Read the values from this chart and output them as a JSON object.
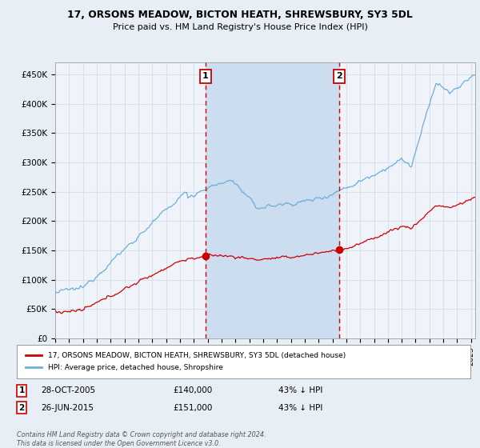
{
  "title": "17, ORSONS MEADOW, BICTON HEATH, SHREWSBURY, SY3 5DL",
  "subtitle": "Price paid vs. HM Land Registry's House Price Index (HPI)",
  "background_color": "#e8eef5",
  "plot_bg_color": "#f0f4fa",
  "grid_color": "#d8e0ea",
  "sale1_date": "28-OCT-2005",
  "sale1_price": 140000,
  "sale1_label": "43% ↓ HPI",
  "sale2_date": "26-JUN-2015",
  "sale2_price": 151000,
  "sale2_label": "43% ↓ HPI",
  "sale1_x": 2005.83,
  "sale2_x": 2015.49,
  "legend_line1": "17, ORSONS MEADOW, BICTON HEATH, SHREWSBURY, SY3 5DL (detached house)",
  "legend_line2": "HPI: Average price, detached house, Shropshire",
  "footer": "Contains HM Land Registry data © Crown copyright and database right 2024.\nThis data is licensed under the Open Government Licence v3.0.",
  "yticks": [
    0,
    50000,
    100000,
    150000,
    200000,
    250000,
    300000,
    350000,
    400000,
    450000
  ],
  "ytick_labels": [
    "£0",
    "£50K",
    "£100K",
    "£150K",
    "£200K",
    "£250K",
    "£300K",
    "£350K",
    "£400K",
    "£450K"
  ],
  "xlim_start": 1995.0,
  "xlim_end": 2025.3,
  "ylim_min": 0,
  "ylim_max": 470000,
  "hpi_color": "#6baed6",
  "sale_color": "#cc0000",
  "shade_color": "#ccddf0",
  "vline_color": "#dd0000",
  "box_edge_color": "#cc0000",
  "marker1_y": 140000,
  "marker2_y": 151000
}
